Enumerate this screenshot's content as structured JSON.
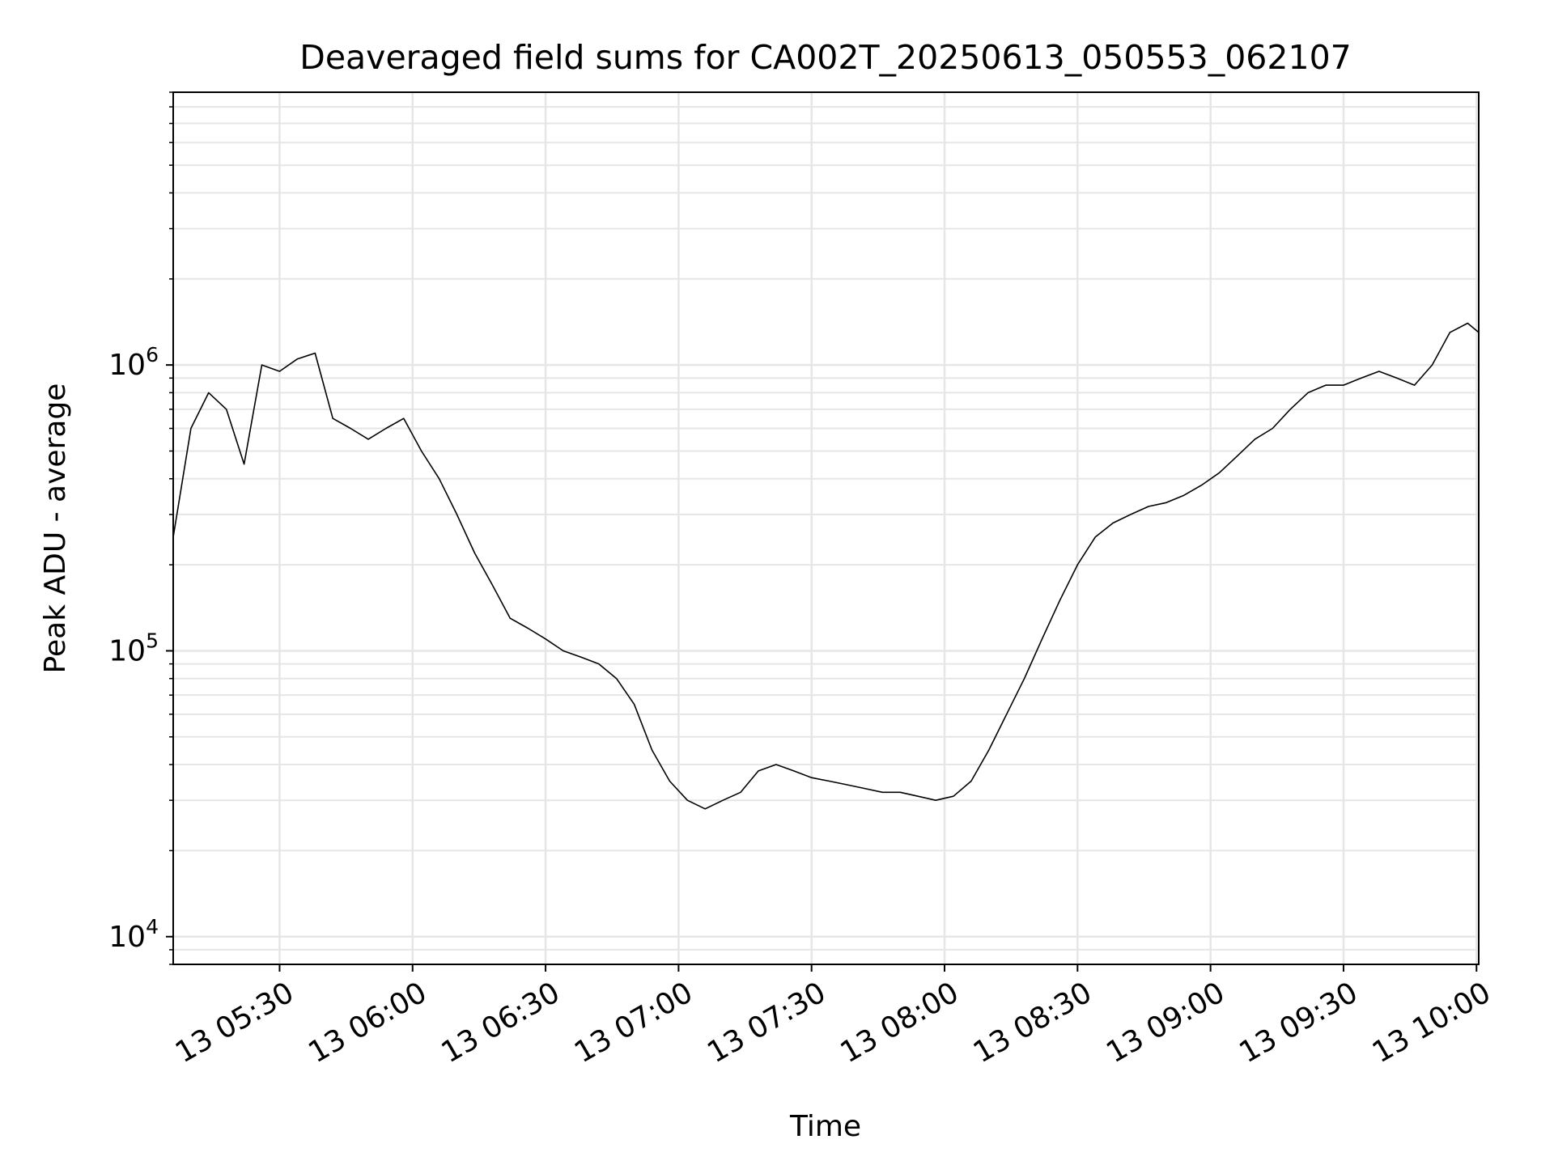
{
  "chart_data": {
    "type": "line",
    "title": "Deaveraged field sums for CA002T_20250613_050553_062107",
    "xlabel": "Time",
    "ylabel": "Peak ADU - average",
    "yscale": "log",
    "ylim": [
      8000,
      9000000
    ],
    "xlim": [
      "2025-06-13 05:06:00",
      "2025-06-13 10:00:30"
    ],
    "grid": true,
    "x_ticks": [
      {
        "value": "2025-06-13 05:30:00",
        "label": "13 05:30"
      },
      {
        "value": "2025-06-13 06:00:00",
        "label": "13 06:00"
      },
      {
        "value": "2025-06-13 06:30:00",
        "label": "13 06:30"
      },
      {
        "value": "2025-06-13 07:00:00",
        "label": "13 07:00"
      },
      {
        "value": "2025-06-13 07:30:00",
        "label": "13 07:30"
      },
      {
        "value": "2025-06-13 08:00:00",
        "label": "13 08:00"
      },
      {
        "value": "2025-06-13 08:30:00",
        "label": "13 08:30"
      },
      {
        "value": "2025-06-13 09:00:00",
        "label": "13 09:00"
      },
      {
        "value": "2025-06-13 09:30:00",
        "label": "13 09:30"
      },
      {
        "value": "2025-06-13 10:00:00",
        "label": "13 10:00"
      }
    ],
    "y_ticks": [
      {
        "value": 10000,
        "base": "10",
        "exp": "4"
      },
      {
        "value": 100000,
        "base": "10",
        "exp": "5"
      },
      {
        "value": 1000000,
        "base": "10",
        "exp": "6"
      }
    ],
    "series": [
      {
        "color": "#000000",
        "x": [
          "2025-06-13 05:06:00",
          "2025-06-13 05:10:00",
          "2025-06-13 05:14:00",
          "2025-06-13 05:18:00",
          "2025-06-13 05:22:00",
          "2025-06-13 05:26:00",
          "2025-06-13 05:30:00",
          "2025-06-13 05:34:00",
          "2025-06-13 05:38:00",
          "2025-06-13 05:42:00",
          "2025-06-13 05:46:00",
          "2025-06-13 05:50:00",
          "2025-06-13 05:54:00",
          "2025-06-13 05:58:00",
          "2025-06-13 06:02:00",
          "2025-06-13 06:06:00",
          "2025-06-13 06:10:00",
          "2025-06-13 06:14:00",
          "2025-06-13 06:18:00",
          "2025-06-13 06:22:00",
          "2025-06-13 06:26:00",
          "2025-06-13 06:30:00",
          "2025-06-13 06:34:00",
          "2025-06-13 06:38:00",
          "2025-06-13 06:42:00",
          "2025-06-13 06:46:00",
          "2025-06-13 06:50:00",
          "2025-06-13 06:54:00",
          "2025-06-13 06:58:00",
          "2025-06-13 07:02:00",
          "2025-06-13 07:06:00",
          "2025-06-13 07:10:00",
          "2025-06-13 07:14:00",
          "2025-06-13 07:18:00",
          "2025-06-13 07:22:00",
          "2025-06-13 07:26:00",
          "2025-06-13 07:30:00",
          "2025-06-13 07:34:00",
          "2025-06-13 07:38:00",
          "2025-06-13 07:42:00",
          "2025-06-13 07:46:00",
          "2025-06-13 07:50:00",
          "2025-06-13 07:54:00",
          "2025-06-13 07:58:00",
          "2025-06-13 08:02:00",
          "2025-06-13 08:06:00",
          "2025-06-13 08:10:00",
          "2025-06-13 08:14:00",
          "2025-06-13 08:18:00",
          "2025-06-13 08:22:00",
          "2025-06-13 08:26:00",
          "2025-06-13 08:30:00",
          "2025-06-13 08:34:00",
          "2025-06-13 08:38:00",
          "2025-06-13 08:42:00",
          "2025-06-13 08:46:00",
          "2025-06-13 08:50:00",
          "2025-06-13 08:54:00",
          "2025-06-13 08:58:00",
          "2025-06-13 09:02:00",
          "2025-06-13 09:06:00",
          "2025-06-13 09:10:00",
          "2025-06-13 09:14:00",
          "2025-06-13 09:18:00",
          "2025-06-13 09:22:00",
          "2025-06-13 09:26:00",
          "2025-06-13 09:30:00",
          "2025-06-13 09:34:00",
          "2025-06-13 09:38:00",
          "2025-06-13 09:42:00",
          "2025-06-13 09:46:00",
          "2025-06-13 09:50:00",
          "2025-06-13 09:54:00",
          "2025-06-13 09:58:00",
          "2025-06-13 10:00:30"
        ],
        "y": [
          250000,
          600000,
          800000,
          700000,
          450000,
          1000000,
          950000,
          1050000,
          1100000,
          650000,
          600000,
          550000,
          600000,
          650000,
          500000,
          400000,
          300000,
          220000,
          170000,
          130000,
          120000,
          110000,
          100000,
          95000,
          90000,
          80000,
          65000,
          45000,
          35000,
          30000,
          28000,
          30000,
          32000,
          38000,
          40000,
          38000,
          36000,
          35000,
          34000,
          33000,
          32000,
          32000,
          31000,
          30000,
          31000,
          35000,
          45000,
          60000,
          80000,
          110000,
          150000,
          200000,
          250000,
          280000,
          300000,
          320000,
          330000,
          350000,
          380000,
          420000,
          480000,
          550000,
          600000,
          700000,
          800000,
          850000,
          850000,
          900000,
          950000,
          900000,
          850000,
          1000000,
          1300000,
          1400000,
          1300000
        ]
      }
    ]
  }
}
